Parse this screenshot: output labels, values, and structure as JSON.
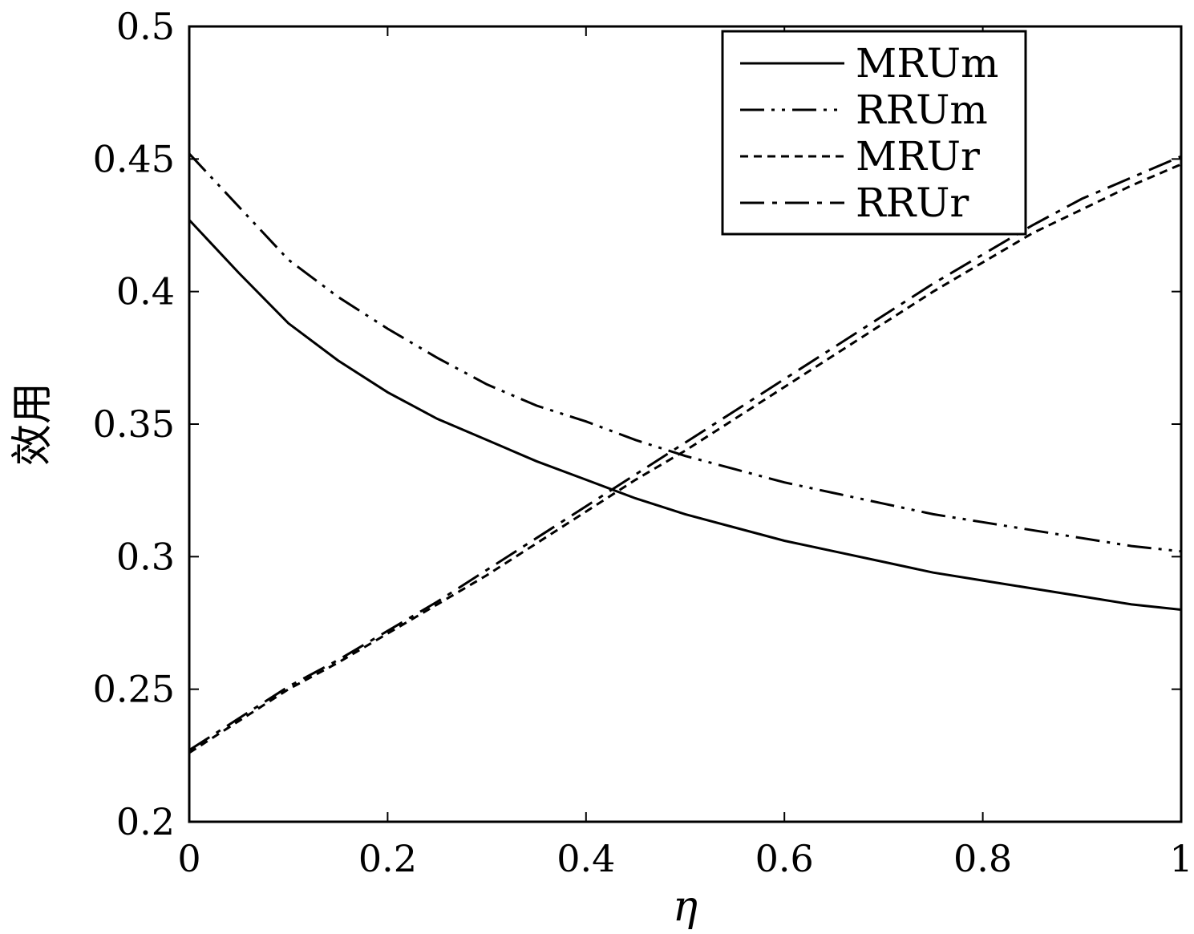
{
  "chart_data": {
    "type": "line",
    "title": "",
    "xlabel": "η",
    "ylabel": "效用",
    "xlim": [
      0,
      1
    ],
    "ylim": [
      0.2,
      0.5
    ],
    "xticks": [
      0,
      0.2,
      0.4,
      0.6,
      0.8,
      1
    ],
    "xtick_labels": [
      "0",
      "0.2",
      "0.4",
      "0.6",
      "0.8",
      "1"
    ],
    "yticks": [
      0.2,
      0.25,
      0.3,
      0.35,
      0.4,
      0.45,
      0.5
    ],
    "ytick_labels": [
      "0.2",
      "0.25",
      "0.3",
      "0.35",
      "0.4",
      "0.45",
      "0.5"
    ],
    "grid": false,
    "legend_position": "top-right",
    "x": [
      0,
      0.05,
      0.1,
      0.15,
      0.2,
      0.25,
      0.3,
      0.35,
      0.4,
      0.45,
      0.5,
      0.55,
      0.6,
      0.65,
      0.7,
      0.75,
      0.8,
      0.85,
      0.9,
      0.95,
      1
    ],
    "series": [
      {
        "name": "MRUm",
        "dash": "solid",
        "values": [
          0.427,
          0.407,
          0.388,
          0.374,
          0.362,
          0.352,
          0.344,
          0.336,
          0.329,
          0.322,
          0.316,
          0.311,
          0.306,
          0.302,
          0.298,
          0.294,
          0.291,
          0.288,
          0.285,
          0.282,
          0.28
        ]
      },
      {
        "name": "RRUm",
        "dash": "dash-dot-dot",
        "values": [
          0.452,
          0.432,
          0.412,
          0.398,
          0.386,
          0.375,
          0.365,
          0.357,
          0.351,
          0.344,
          0.338,
          0.333,
          0.328,
          0.324,
          0.32,
          0.316,
          0.313,
          0.31,
          0.307,
          0.304,
          0.302
        ]
      },
      {
        "name": "MRUr",
        "dash": "dotted",
        "values": [
          0.226,
          0.238,
          0.25,
          0.26,
          0.271,
          0.282,
          0.293,
          0.305,
          0.317,
          0.329,
          0.34,
          0.352,
          0.364,
          0.376,
          0.388,
          0.4,
          0.411,
          0.422,
          0.431,
          0.44,
          0.448
        ]
      },
      {
        "name": "RRUr",
        "dash": "dash-dot",
        "values": [
          0.227,
          0.239,
          0.251,
          0.261,
          0.272,
          0.283,
          0.295,
          0.307,
          0.319,
          0.331,
          0.343,
          0.355,
          0.367,
          0.379,
          0.391,
          0.403,
          0.414,
          0.425,
          0.435,
          0.443,
          0.451
        ]
      }
    ]
  }
}
